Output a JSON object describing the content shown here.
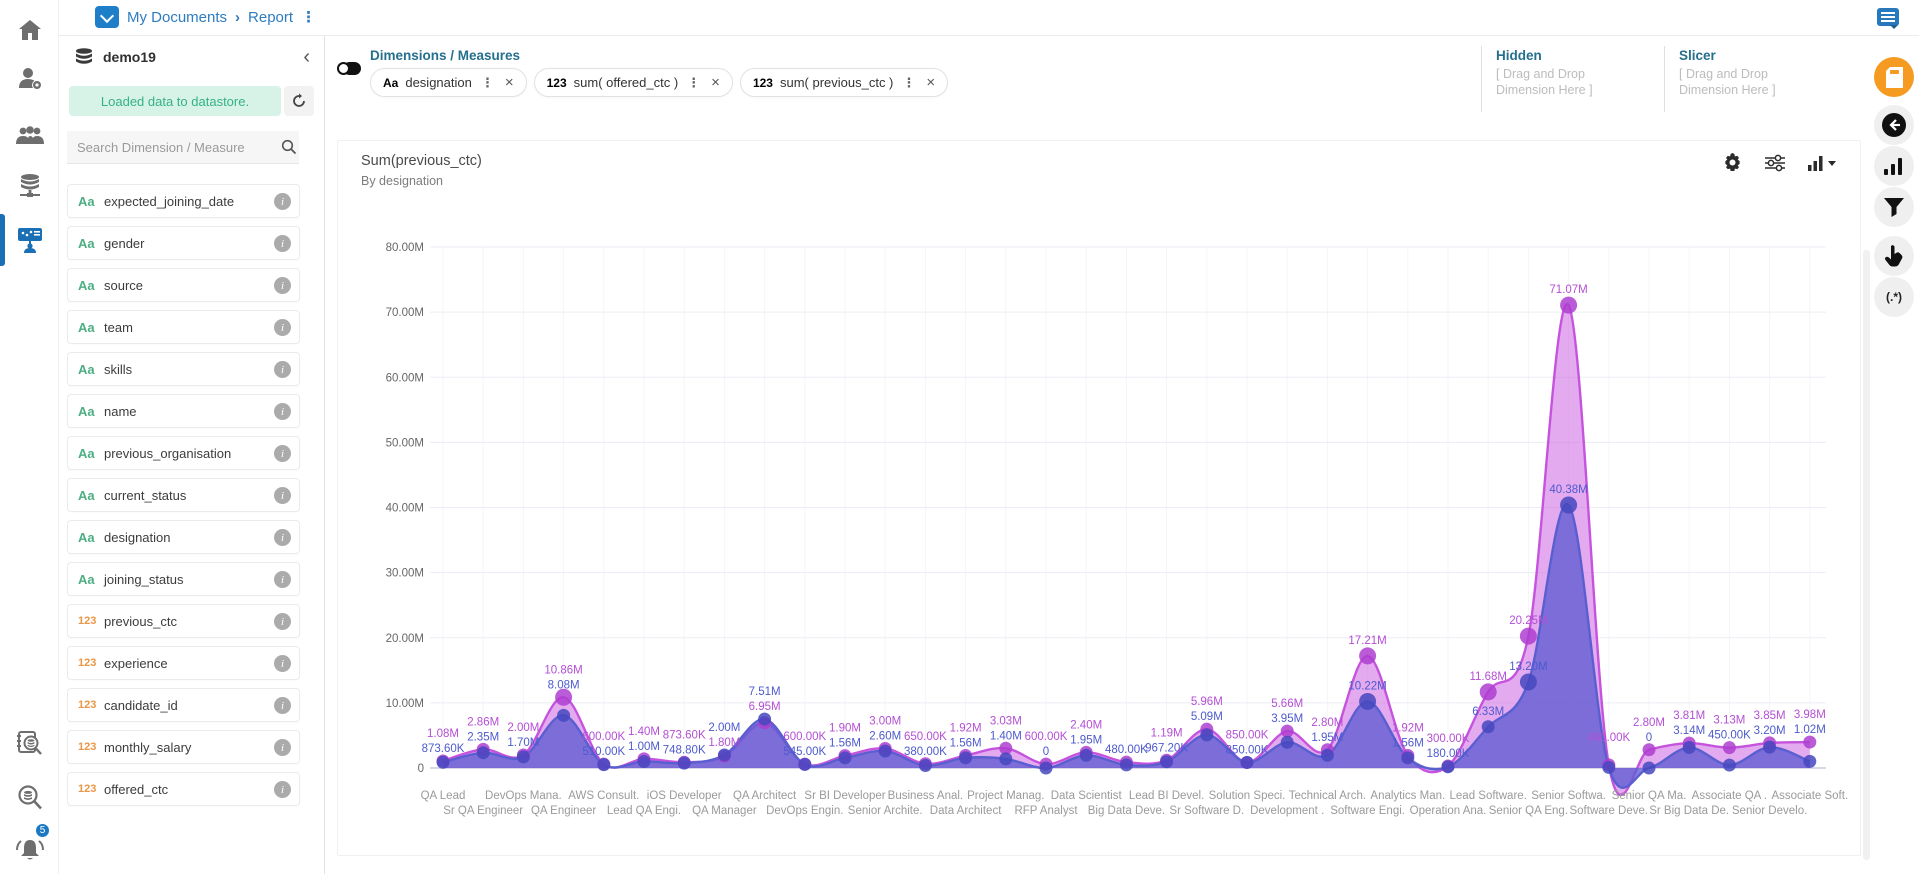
{
  "header": {
    "breadcrumb": {
      "items": [
        "My Documents",
        "Report"
      ],
      "separator": "›",
      "menu": "⋮"
    },
    "right_icons": [
      "chat-icon",
      "fullscreen-icon"
    ]
  },
  "left_rail": {
    "icons": [
      "home",
      "user-settings",
      "team",
      "datastore",
      "dashboards",
      "data-catalog-search",
      "search-data",
      "notifications"
    ],
    "active_icon": "dashboards",
    "notification_badge": "5"
  },
  "datastore_panel": {
    "name": "demo19",
    "status_message": "Loaded data to datastore.",
    "collapse_glyph": "‹",
    "search_placeholder": "Search Dimension / Measure",
    "fields": [
      {
        "tag": "Aa",
        "kind": "text",
        "label": "expected_joining_date"
      },
      {
        "tag": "Aa",
        "kind": "text",
        "label": "gender"
      },
      {
        "tag": "Aa",
        "kind": "text",
        "label": "source"
      },
      {
        "tag": "Aa",
        "kind": "text",
        "label": "team"
      },
      {
        "tag": "Aa",
        "kind": "text",
        "label": "skills"
      },
      {
        "tag": "Aa",
        "kind": "text",
        "label": "name"
      },
      {
        "tag": "Aa",
        "kind": "text",
        "label": "previous_organisation"
      },
      {
        "tag": "Aa",
        "kind": "text",
        "label": "current_status"
      },
      {
        "tag": "Aa",
        "kind": "text",
        "label": "designation"
      },
      {
        "tag": "Aa",
        "kind": "text",
        "label": "joining_status"
      },
      {
        "tag": "123",
        "kind": "number",
        "label": "previous_ctc"
      },
      {
        "tag": "123",
        "kind": "number",
        "label": "experience"
      },
      {
        "tag": "123",
        "kind": "number",
        "label": "candidate_id"
      },
      {
        "tag": "123",
        "kind": "number",
        "label": "monthly_salary"
      },
      {
        "tag": "123",
        "kind": "number",
        "label": "offered_ctc"
      }
    ],
    "info_glyph": "i"
  },
  "builder": {
    "section_title": "Dimensions / Measures",
    "chips": [
      {
        "tag": "Aa",
        "kind": "text",
        "label": "designation"
      },
      {
        "tag": "123",
        "kind": "number",
        "label": "sum( offered_ctc )"
      },
      {
        "tag": "123",
        "kind": "number",
        "label": "sum( previous_ctc )"
      }
    ],
    "chip_menu_glyph": "⋮",
    "chip_close_glyph": "×",
    "hidden_zone": {
      "title": "Hidden",
      "placeholder": "[ Drag and Drop Dimension Here ]"
    },
    "slicer_zone": {
      "title": "Slicer",
      "placeholder": "[ Drag and Drop Dimension Here ]"
    }
  },
  "chart": {
    "title": "Sum(previous_ctc)",
    "subtitle": "By designation",
    "toolbar_icons": [
      "settings-gear",
      "display-settings-sliders",
      "chart-type-dropdown"
    ]
  },
  "chart_data": {
    "type": "area",
    "title": "Sum(previous_ctc)",
    "subtitle": "By designation",
    "ylim": [
      0,
      80000000
    ],
    "ytick_labels": [
      "0",
      "10.00M",
      "20.00M",
      "30.00M",
      "40.00M",
      "50.00M",
      "60.00M",
      "70.00M",
      "80.00M"
    ],
    "grid": true,
    "legend": "none",
    "categories": [
      "QA Lead",
      "Sr QA Engineer",
      "DevOps Mana.",
      "QA Engineer",
      "AWS Consult.",
      "Lead QA Engi.",
      "iOS Developer",
      "QA Manager",
      "QA Architect",
      "DevOps Engin.",
      "Sr BI Developer",
      "Senior Archite.",
      "Business Anal.",
      "Data Architect",
      "Project Manag.",
      "RFP Analyst",
      "Data Scientist",
      "Big Data Deve.",
      "Lead BI Devel.",
      "Sr Software D.",
      "Solution Speci.",
      "Development .",
      "Technical Arch.",
      "Software Engi.",
      "Analytics Man.",
      "Operation Ana.",
      "Lead Software.",
      "Senior QA Eng.",
      "Senior Softwa.",
      "Software Deve.",
      "Senior QA Ma.",
      "Sr Big Data De.",
      "Associate QA .",
      "Senior Develo.",
      "Associate Soft."
    ],
    "series": [
      {
        "name": "sum( offered_ctc )",
        "line_color": "#c653dd",
        "fill_color": "rgba(205,100,225,0.55)",
        "dot_color": "#ae3ed0",
        "label_color": "#b44fd4",
        "values_millions": [
          1.08,
          2.86,
          2.0,
          10.86,
          0.6,
          1.4,
          0.8736,
          1.8,
          6.95,
          0.6,
          1.9,
          3.0,
          0.65,
          1.92,
          3.03,
          0.6,
          2.4,
          0.9,
          1.19,
          5.96,
          0.85,
          5.66,
          2.8,
          17.21,
          1.92,
          0.3,
          11.68,
          20.25,
          71.07,
          0.48,
          2.8,
          3.81,
          3.13,
          3.85,
          3.98
        ],
        "labels": [
          "1.08M",
          "2.86M",
          "2.00M",
          "10.86M",
          "600.00K",
          "1.40M",
          "873.60K",
          "1.80M",
          "6.95M",
          "600.00K",
          "1.90M",
          "3.00M",
          "650.00K",
          "1.92M",
          "3.03M",
          "600.00K",
          "2.40M",
          "",
          "1.19M",
          "5.96M",
          "850.00K",
          "5.66M",
          "2.80M",
          "17.21M",
          "1.92M",
          "300.00K",
          "11.68M",
          "20.25M",
          "71.07M",
          "480.00K",
          "2.80M",
          "3.81M",
          "3.13M",
          "3.85M",
          "3.98M"
        ]
      },
      {
        "name": "sum( previous_ctc )",
        "line_color": "#5a5fd0",
        "fill_color": "rgba(96,92,210,0.78)",
        "dot_color": "#4548be",
        "label_color": "#4d5ace",
        "values_millions": [
          0.8736,
          2.35,
          1.7,
          8.08,
          0.51,
          1.0,
          0.7488,
          2.0,
          7.51,
          0.545,
          1.56,
          2.6,
          0.38,
          1.56,
          1.4,
          0,
          1.95,
          0.48,
          0.9672,
          5.09,
          0.85,
          3.95,
          1.95,
          10.22,
          1.56,
          0.18,
          6.33,
          13.2,
          40.38,
          0.1,
          0,
          3.14,
          0.45,
          3.2,
          1.02
        ],
        "labels": [
          "873.60K",
          "2.35M",
          "1.70M",
          "8.08M",
          "510.00K",
          "1.00M",
          "748.80K",
          "2.00M",
          "7.51M",
          "545.00K",
          "1.56M",
          "2.60M",
          "380.00K",
          "1.56M",
          "1.40M",
          "0",
          "1.95M",
          "480.00K",
          "967.20K",
          "5.09M",
          "850.00K",
          "3.95M",
          "1.95M",
          "10.22M",
          "1.56M",
          "180.00K",
          "6.33M",
          "13.20M",
          "40.38M",
          "",
          "0",
          "3.14M",
          "450.00K",
          "3.20M",
          "1.02M"
        ]
      }
    ]
  },
  "right_rail": {
    "icons": [
      "memory-card",
      "circle-arrow-back",
      "bar-chart",
      "filter-funnel",
      "hand-pointer",
      "regex"
    ],
    "regex_glyph": "(.*)"
  },
  "colors": {
    "accent_blue": "#1a6fb5",
    "breadcrumb_blue": "#2e7cc0",
    "teal_heading": "#25708e",
    "tag_green": "#4cae82",
    "tag_orange": "#e99746",
    "banner_green_bg": "#d7f3e7",
    "banner_green_text": "#35b285",
    "rail_orange": "#f59b22",
    "series_magenta": "#c653dd",
    "series_indigo": "#5a5fd0"
  }
}
